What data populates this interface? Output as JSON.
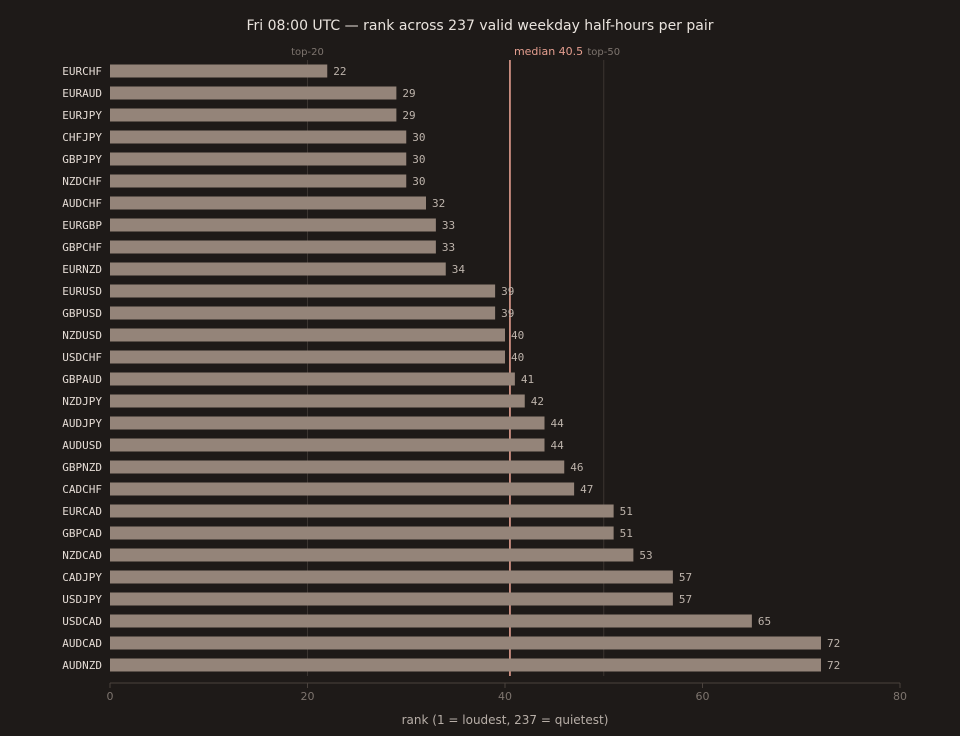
{
  "chart_data": {
    "type": "bar",
    "orientation": "horizontal",
    "title": "Fri 08:00 UTC — rank across 237 valid weekday half-hours per pair",
    "xlabel": "rank (1 = loudest, 237 = quietest)",
    "ylabel": "",
    "xlim": [
      0,
      80
    ],
    "x_ticks": [
      0,
      20,
      40,
      60,
      80
    ],
    "grid": false,
    "categories": [
      "EURCHF",
      "EURAUD",
      "EURJPY",
      "CHFJPY",
      "GBPJPY",
      "NZDCHF",
      "AUDCHF",
      "EURGBP",
      "GBPCHF",
      "EURNZD",
      "EURUSD",
      "GBPUSD",
      "NZDUSD",
      "USDCHF",
      "GBPAUD",
      "NZDJPY",
      "AUDJPY",
      "AUDUSD",
      "GBPNZD",
      "CADCHF",
      "EURCAD",
      "GBPCAD",
      "NZDCAD",
      "CADJPY",
      "USDJPY",
      "USDCAD",
      "AUDCAD",
      "AUDNZD"
    ],
    "values": [
      22,
      29,
      29,
      30,
      30,
      30,
      32,
      33,
      33,
      34,
      39,
      39,
      40,
      40,
      41,
      42,
      44,
      44,
      46,
      47,
      51,
      51,
      53,
      57,
      57,
      65,
      72,
      72
    ],
    "reference_lines": [
      {
        "label": "top-20",
        "value": 20,
        "color": "#3b3531"
      },
      {
        "label": "top-50",
        "value": 50,
        "color": "#3b3531"
      }
    ],
    "median": {
      "label": "median 40.5",
      "value": 40.5,
      "color": "#e49e8f"
    },
    "colors": {
      "background": "#1e1a18",
      "bar": "#948479",
      "axis": "#4a423d"
    }
  }
}
